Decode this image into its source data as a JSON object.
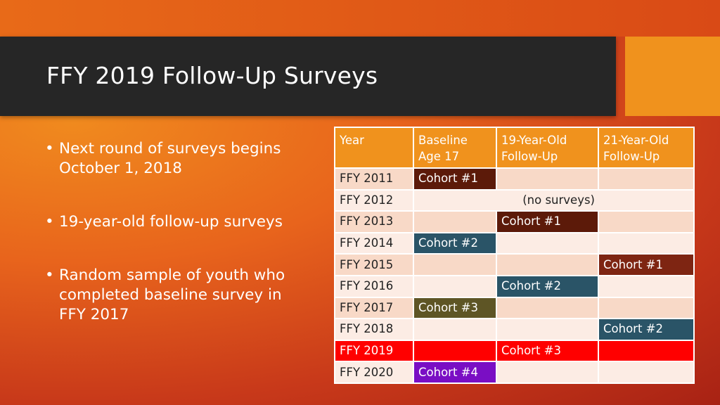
{
  "slide": {
    "title": "FFY 2019 Follow-Up Surveys",
    "bullets": [
      "Next round of surveys begins October 1, 2018",
      "19-year-old follow-up surveys",
      "Random sample of youth who completed baseline survey in FFY 2017"
    ]
  },
  "colors": {
    "header": "#f0921d",
    "cohort_dark_brown": "#5c1a09",
    "cohort_teal": "#2a5467",
    "cohort_olive": "#5e5525",
    "cohort_brown": "#7e2512",
    "highlight_red": "#ff0000",
    "cohort_purple": "#7a0ec4"
  },
  "table": {
    "headers": {
      "year": "Year",
      "baseline_line1": "Baseline",
      "baseline_line2": "Age 17",
      "fu19_line1": "19-Year-Old",
      "fu19_line2": "Follow-Up",
      "fu21_line1": "21-Year-Old",
      "fu21_line2": "Follow-Up"
    },
    "rows": {
      "r2011": {
        "year": "FFY 2011",
        "baseline": "Cohort #1",
        "fu19": "",
        "fu21": ""
      },
      "r2012": {
        "year": "FFY 2012",
        "note": "(no surveys)"
      },
      "r2013": {
        "year": "FFY 2013",
        "baseline": "",
        "fu19": "Cohort #1",
        "fu21": ""
      },
      "r2014": {
        "year": "FFY 2014",
        "baseline": "Cohort #2",
        "fu19": "",
        "fu21": ""
      },
      "r2015": {
        "year": "FFY 2015",
        "baseline": "",
        "fu19": "",
        "fu21": "Cohort #1"
      },
      "r2016": {
        "year": "FFY 2016",
        "baseline": "",
        "fu19": "Cohort #2",
        "fu21": ""
      },
      "r2017": {
        "year": "FFY 2017",
        "baseline": "Cohort #3",
        "fu19": "",
        "fu21": ""
      },
      "r2018": {
        "year": "FFY 2018",
        "baseline": "",
        "fu19": "",
        "fu21": "Cohort #2"
      },
      "r2019": {
        "year": "FFY 2019",
        "baseline": "",
        "fu19": "Cohort #3",
        "fu21": ""
      },
      "r2020": {
        "year": "FFY 2020",
        "baseline": "Cohort #4",
        "fu19": "",
        "fu21": ""
      }
    }
  }
}
